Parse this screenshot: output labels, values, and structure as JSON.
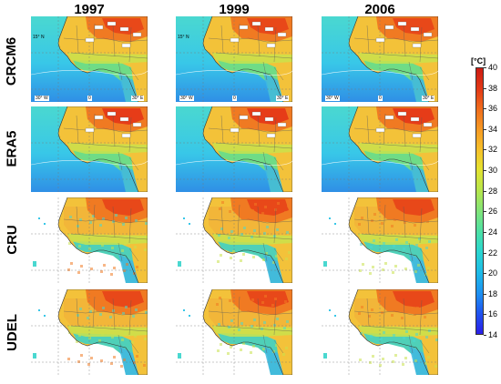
{
  "columns": [
    {
      "label": "1997"
    },
    {
      "label": "1999"
    },
    {
      "label": "2006"
    }
  ],
  "rows": [
    {
      "label": "CRCM6",
      "style": "model"
    },
    {
      "label": "ERA5",
      "style": "model"
    },
    {
      "label": "CRU",
      "style": "obs"
    },
    {
      "label": "UDEL",
      "style": "obs"
    }
  ],
  "grid_labels": {
    "lat_label": "15° N",
    "lon_west": "30° W",
    "lon_zero": "0",
    "lon_east": "30° E"
  },
  "colorbar": {
    "unit": "[°C]",
    "min": 14,
    "max": 40,
    "ticks": [
      40,
      38,
      36,
      34,
      32,
      30,
      28,
      26,
      24,
      22,
      20,
      18,
      16,
      14
    ],
    "colors": [
      "#2a1ee8",
      "#1f55f0",
      "#1d8ff2",
      "#1dbbe8",
      "#2ad6d0",
      "#49e0a8",
      "#7fe47a",
      "#b6e64c",
      "#e4e22f",
      "#f6c22a",
      "#f69a23",
      "#ef6a1c",
      "#e33a16",
      "#cc1a12"
    ]
  },
  "map_colors": {
    "ocean_cool": "#38c7e8",
    "ocean_mid": "#4ad8d0",
    "ocean_deep": "#2f8fe6",
    "land_warm": "#f3c23a",
    "land_hot": "#f07a22",
    "land_hottest": "#e63c18",
    "sahel": "#c9e24c",
    "forest": "#6fdc86",
    "highland": "#3fb7e0",
    "border": "#5a5a5a"
  }
}
